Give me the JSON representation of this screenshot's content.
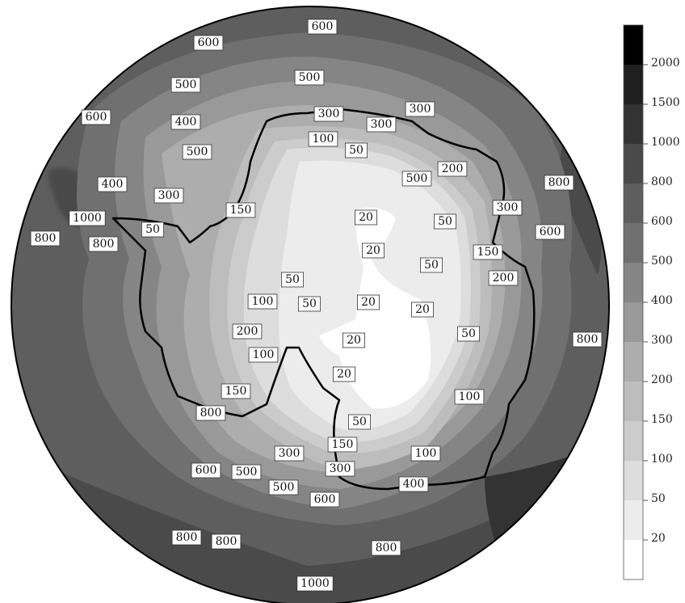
{
  "legend": {
    "levels": [
      2000,
      1500,
      1000,
      800,
      600,
      500,
      400,
      300,
      200,
      150,
      100,
      50,
      20
    ],
    "colors": [
      "#000000",
      "#202020",
      "#333333",
      "#4a4a4a",
      "#5e5e5e",
      "#707070",
      "#858585",
      "#999999",
      "#adadad",
      "#bdbdbd",
      "#cccccc",
      "#dddddd",
      "#ececec",
      "#ffffff"
    ]
  },
  "contour_labels": [
    "600",
    "600",
    "500",
    "500",
    "600",
    "400",
    "300",
    "300",
    "500",
    "300",
    "300",
    "100",
    "50",
    "400",
    "300",
    "150",
    "1000",
    "500",
    "800",
    "800",
    "200",
    "50",
    "800",
    "300",
    "20",
    "600",
    "20",
    "50",
    "50",
    "150",
    "200",
    "50",
    "100",
    "50",
    "20",
    "20",
    "200",
    "20",
    "50",
    "800",
    "100",
    "20",
    "150",
    "100",
    "800",
    "50",
    "150",
    "300",
    "100",
    "300",
    "600",
    "500",
    "400",
    "500",
    "600",
    "800",
    "800",
    "800",
    "1000"
  ]
}
